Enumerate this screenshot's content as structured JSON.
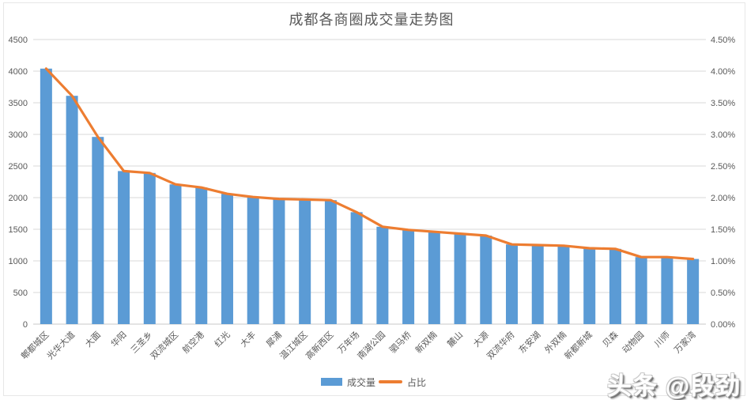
{
  "watermark": "头条 @段劲",
  "chart_data": {
    "type": "bar+line",
    "title": "成都各商圈成交量走势图",
    "categories": [
      "郫都城区",
      "光华大道",
      "大面",
      "华阳",
      "三圣乡",
      "双流城区",
      "航空港",
      "红光",
      "大丰",
      "犀浦",
      "温江城区",
      "高新西区",
      "万年场",
      "南湖公园",
      "驷马桥",
      "新双楠",
      "麓山",
      "大源",
      "双流华府",
      "东安湖",
      "外双楠",
      "新都新城",
      "贝森",
      "动物园",
      "川师",
      "万家湾"
    ],
    "series": [
      {
        "name": "成交量",
        "type": "bar",
        "axis": "left",
        "color": "#5B9BD5",
        "values": [
          4040,
          3610,
          2960,
          2420,
          2390,
          2210,
          2160,
          2060,
          2010,
          1980,
          1970,
          1960,
          1770,
          1540,
          1490,
          1460,
          1430,
          1400,
          1260,
          1250,
          1240,
          1200,
          1190,
          1060,
          1060,
          1030
        ]
      },
      {
        "name": "占比",
        "type": "line",
        "axis": "right",
        "color": "#ED7D31",
        "values_percent": [
          4.04,
          3.61,
          2.96,
          2.42,
          2.39,
          2.21,
          2.16,
          2.06,
          2.01,
          1.98,
          1.97,
          1.96,
          1.77,
          1.54,
          1.49,
          1.46,
          1.43,
          1.4,
          1.26,
          1.25,
          1.24,
          1.2,
          1.19,
          1.06,
          1.06,
          1.03
        ]
      }
    ],
    "left_axis": {
      "min": 0,
      "max": 4500,
      "step": 500,
      "tick_labels": [
        "0",
        "500",
        "1000",
        "1500",
        "2000",
        "2500",
        "3000",
        "3500",
        "4000",
        "4500"
      ]
    },
    "right_axis": {
      "min_percent": 0,
      "max_percent": 4.5,
      "step_percent": 0.5,
      "tick_labels": [
        "0.00%",
        "0.50%",
        "1.00%",
        "1.50%",
        "2.00%",
        "2.50%",
        "3.00%",
        "3.50%",
        "4.00%",
        "4.50%"
      ]
    },
    "grid": "horizontal",
    "legend_position": "bottom-center",
    "category_label_rotation_deg": 45,
    "colors": {
      "grid": "#D9D9D9",
      "axis_text": "#595959",
      "background": "#FFFFFF"
    }
  }
}
